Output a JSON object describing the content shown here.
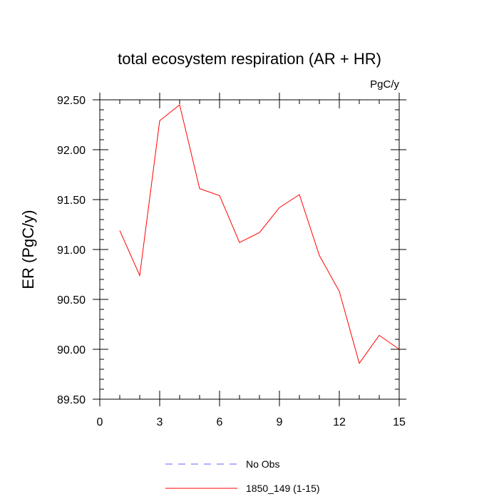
{
  "chart_data": {
    "type": "line",
    "title": "total ecosystem respiration (AR + HR)",
    "units": "PgC/y",
    "xlabel": "",
    "ylabel": "ER  (PgC/y)",
    "xlim": [
      0,
      15
    ],
    "ylim": [
      89.5,
      92.5
    ],
    "xticks": [
      0,
      3,
      6,
      9,
      12,
      15
    ],
    "xtick_labels": [
      "0",
      "3",
      "6",
      "9",
      "12",
      "15"
    ],
    "yticks": [
      89.5,
      90.0,
      90.5,
      91.0,
      91.5,
      92.0,
      92.5
    ],
    "ytick_labels": [
      "89.50",
      "90.00",
      "90.50",
      "91.00",
      "91.50",
      "92.00",
      "92.50"
    ],
    "grid": false,
    "legend_position": "bottom",
    "series": [
      {
        "name": "No Obs",
        "color": "#6666ff",
        "dash": "dashed",
        "x": [],
        "values": []
      },
      {
        "name": "1850_149 (1-15)",
        "color": "#ff0000",
        "dash": "solid",
        "x": [
          1,
          2,
          3,
          4,
          5,
          6,
          7,
          8,
          9,
          10,
          11,
          12,
          13,
          14,
          15
        ],
        "values": [
          91.19,
          90.74,
          92.29,
          92.45,
          91.61,
          91.54,
          91.07,
          91.17,
          91.42,
          91.55,
          90.94,
          90.58,
          89.86,
          90.14,
          90.0
        ]
      }
    ]
  }
}
